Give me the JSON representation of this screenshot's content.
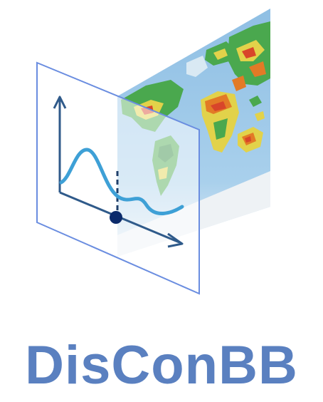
{
  "logo": {
    "wordmark": "DisConBB",
    "wordmark_color": "#5a80c0",
    "plane_color": "#6a8de0",
    "curve_color": "#3ea0d6",
    "axis_color": "#2f5a8a",
    "marker_color": "#0b2a6b",
    "map_colors": {
      "ocean": "#9cc7e6",
      "land_green": "#4aa84e",
      "land_yellow": "#e2d24a",
      "land_red": "#d8452a",
      "land_orange": "#e37a26"
    },
    "icons": [
      "world-map-heatmap",
      "translucent-plane",
      "function-plot"
    ]
  }
}
